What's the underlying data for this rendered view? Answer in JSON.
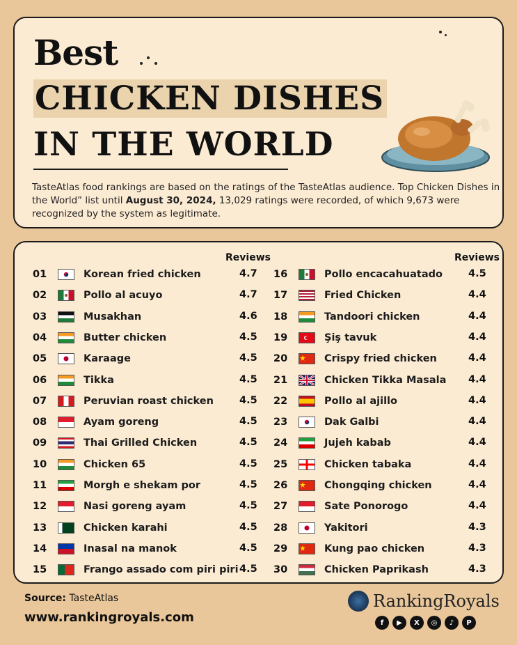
{
  "title": {
    "line1": "Best",
    "line2": "CHICKEN DISHES",
    "line3": "IN THE WORLD"
  },
  "description": {
    "part1": "TasteAtlas food rankings are based on the ratings of the TasteAtlas audience. Top Chicken Dishes in the World” list until ",
    "date": "August 30, 2024,",
    "part2": " 13,029 ratings were recorded, of which 9,673 were recognized by the system as legitimate."
  },
  "list": {
    "reviews_header": "Reviews",
    "left": [
      {
        "rank": "01",
        "flag": "kr",
        "name": "Korean fried chicken",
        "score": "4.7"
      },
      {
        "rank": "02",
        "flag": "mx",
        "name": "Pollo al acuyo",
        "score": "4.7"
      },
      {
        "rank": "03",
        "flag": "ps",
        "name": "Musakhan",
        "score": "4.6"
      },
      {
        "rank": "04",
        "flag": "in",
        "name": "Butter chicken",
        "score": "4.5"
      },
      {
        "rank": "05",
        "flag": "jp",
        "name": "Karaage",
        "score": "4.5"
      },
      {
        "rank": "06",
        "flag": "in",
        "name": "Tikka",
        "score": "4.5"
      },
      {
        "rank": "07",
        "flag": "pe",
        "name": "Peruvian roast chicken",
        "score": "4.5"
      },
      {
        "rank": "08",
        "flag": "id",
        "name": "Ayam goreng",
        "score": "4.5"
      },
      {
        "rank": "09",
        "flag": "th",
        "name": "Thai Grilled Chicken",
        "score": "4.5"
      },
      {
        "rank": "10",
        "flag": "in",
        "name": "Chicken 65",
        "score": "4.5"
      },
      {
        "rank": "11",
        "flag": "ir",
        "name": "Morgh e shekam por",
        "score": "4.5"
      },
      {
        "rank": "12",
        "flag": "id",
        "name": "Nasi goreng ayam",
        "score": "4.5"
      },
      {
        "rank": "13",
        "flag": "pk",
        "name": "Chicken karahi",
        "score": "4.5"
      },
      {
        "rank": "14",
        "flag": "ph",
        "name": "Inasal na manok",
        "score": "4.5"
      },
      {
        "rank": "15",
        "flag": "pt",
        "name": "Frango assado com piri piri",
        "score": "4.5"
      }
    ],
    "right": [
      {
        "rank": "16",
        "flag": "mx",
        "name": "Pollo encacahuatado",
        "score": "4.5"
      },
      {
        "rank": "17",
        "flag": "us",
        "name": "Fried Chicken",
        "score": "4.4"
      },
      {
        "rank": "18",
        "flag": "in",
        "name": "Tandoori chicken",
        "score": "4.4"
      },
      {
        "rank": "19",
        "flag": "tr",
        "name": "Şiş tavuk",
        "score": "4.4"
      },
      {
        "rank": "20",
        "flag": "cn",
        "name": "Crispy fried chicken",
        "score": "4.4"
      },
      {
        "rank": "21",
        "flag": "gb",
        "name": "Chicken Tikka Masala",
        "score": "4.4"
      },
      {
        "rank": "22",
        "flag": "es",
        "name": "Pollo al ajillo",
        "score": "4.4"
      },
      {
        "rank": "23",
        "flag": "kr",
        "name": "Dak Galbi",
        "score": "4.4"
      },
      {
        "rank": "24",
        "flag": "ir",
        "name": "Jujeh kabab",
        "score": "4.4"
      },
      {
        "rank": "25",
        "flag": "ge",
        "name": "Chicken tabaka",
        "score": "4.4"
      },
      {
        "rank": "26",
        "flag": "cn",
        "name": "Chongqing chicken",
        "score": "4.4"
      },
      {
        "rank": "27",
        "flag": "id",
        "name": "Sate Ponorogo",
        "score": "4.4"
      },
      {
        "rank": "28",
        "flag": "jp",
        "name": "Yakitori",
        "score": "4.3"
      },
      {
        "rank": "29",
        "flag": "cn",
        "name": "Kung pao chicken",
        "score": "4.3"
      },
      {
        "rank": "30",
        "flag": "hu",
        "name": "Chicken Paprikash",
        "score": "4.3"
      }
    ]
  },
  "footer": {
    "source_label": "Source:",
    "source_value": " TasteAtlas",
    "url": "www.rankingroyals.com",
    "brand": "RankingRoyals",
    "socials": [
      "facebook-icon",
      "youtube-icon",
      "x-icon",
      "instagram-icon",
      "tiktok-icon",
      "pinterest-icon"
    ]
  },
  "colors": {
    "background": "#e9c79a",
    "card": "#fcebd3",
    "highlight": "#ead3ad"
  }
}
